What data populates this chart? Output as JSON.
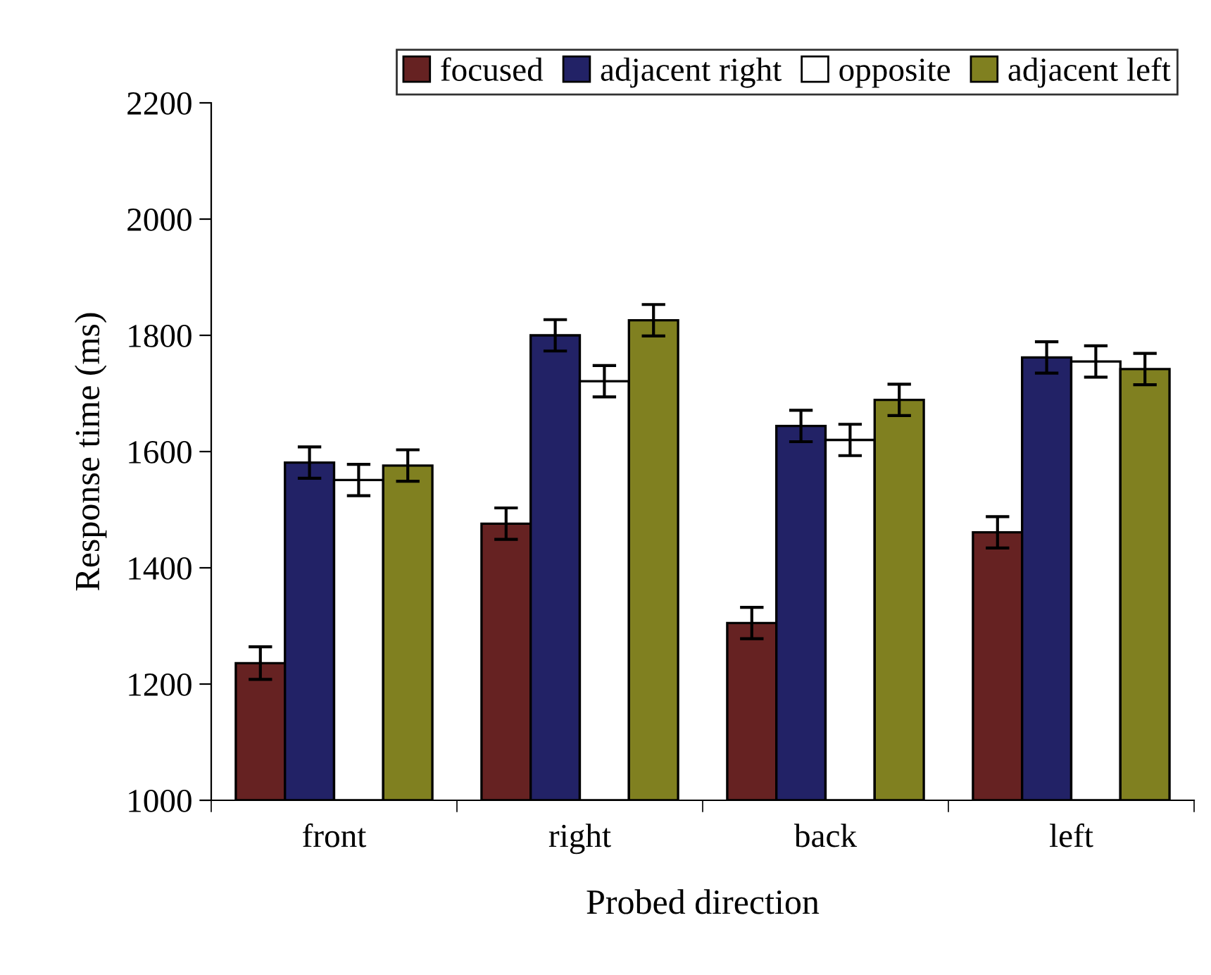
{
  "chart_data": {
    "type": "bar",
    "xlabel": "Probed direction",
    "ylabel": "Response time (ms)",
    "categories": [
      "front",
      "right",
      "back",
      "left"
    ],
    "series": [
      {
        "name": "focused",
        "color": "#662222",
        "values": [
          1236,
          1476,
          1305,
          1461
        ],
        "errors": [
          28,
          27,
          27,
          27
        ]
      },
      {
        "name": "adjacent right",
        "color": "#222266",
        "values": [
          1581,
          1800,
          1644,
          1762
        ],
        "errors": [
          27,
          27,
          27,
          27
        ]
      },
      {
        "name": "opposite",
        "color": "#ffffff",
        "values": [
          1551,
          1721,
          1620,
          1755
        ],
        "errors": [
          27,
          27,
          27,
          27
        ]
      },
      {
        "name": "adjacent left",
        "color": "#808020",
        "values": [
          1576,
          1826,
          1689,
          1742
        ],
        "errors": [
          27,
          27,
          27,
          27
        ]
      }
    ],
    "ylim": [
      1000,
      2200
    ],
    "yticks": [
      1000,
      1200,
      1400,
      1600,
      1800,
      2000,
      2200
    ],
    "grid": false,
    "legend": "top"
  }
}
